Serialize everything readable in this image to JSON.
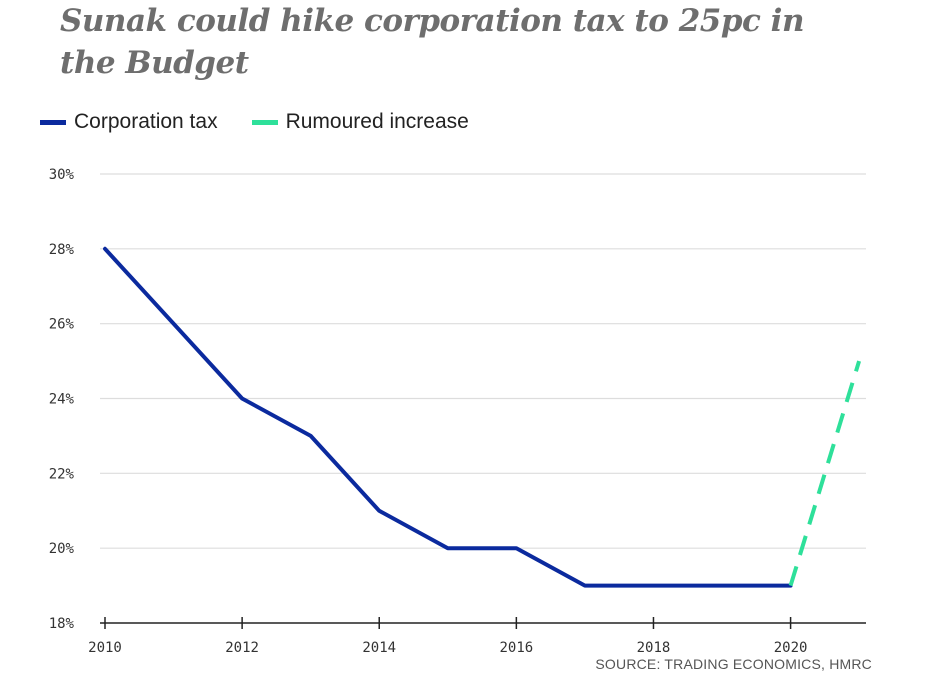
{
  "title": "Sunak could hike corporation tax to 25pc in the Budget",
  "source": "SOURCE: TRADING ECONOMICS, HMRC",
  "colors": {
    "corporation_tax": "#0b2a9e",
    "rumoured_increase": "#2ee09a",
    "grid": "#dddddd",
    "axis": "#222222"
  },
  "chart_data": {
    "type": "line",
    "title": "Sunak could hike corporation tax to 25pc in the Budget",
    "xlabel": "",
    "ylabel": "",
    "xlim": [
      2010,
      2021.1
    ],
    "ylim": [
      18,
      30
    ],
    "x_ticks": [
      2010,
      2012,
      2014,
      2016,
      2018,
      2020
    ],
    "x_tick_labels": [
      "2010",
      "2012",
      "2014",
      "2016",
      "2018",
      "2020"
    ],
    "y_ticks": [
      18,
      20,
      22,
      24,
      26,
      28,
      30
    ],
    "y_tick_labels": [
      "18%",
      "20%",
      "22%",
      "24%",
      "26%",
      "28%",
      "30%"
    ],
    "grid": true,
    "legend_position": "top-left",
    "series": [
      {
        "name": "Corporation tax",
        "style": "solid",
        "points": [
          [
            2010,
            28
          ],
          [
            2012,
            24
          ],
          [
            2013,
            23
          ],
          [
            2014,
            21
          ],
          [
            2015,
            20
          ],
          [
            2016,
            20
          ],
          [
            2017,
            19
          ],
          [
            2018,
            19
          ],
          [
            2019,
            19
          ],
          [
            2020,
            19
          ]
        ]
      },
      {
        "name": "Rumoured increase",
        "style": "dashed",
        "points": [
          [
            2020,
            19
          ],
          [
            2021,
            25
          ]
        ]
      }
    ]
  }
}
